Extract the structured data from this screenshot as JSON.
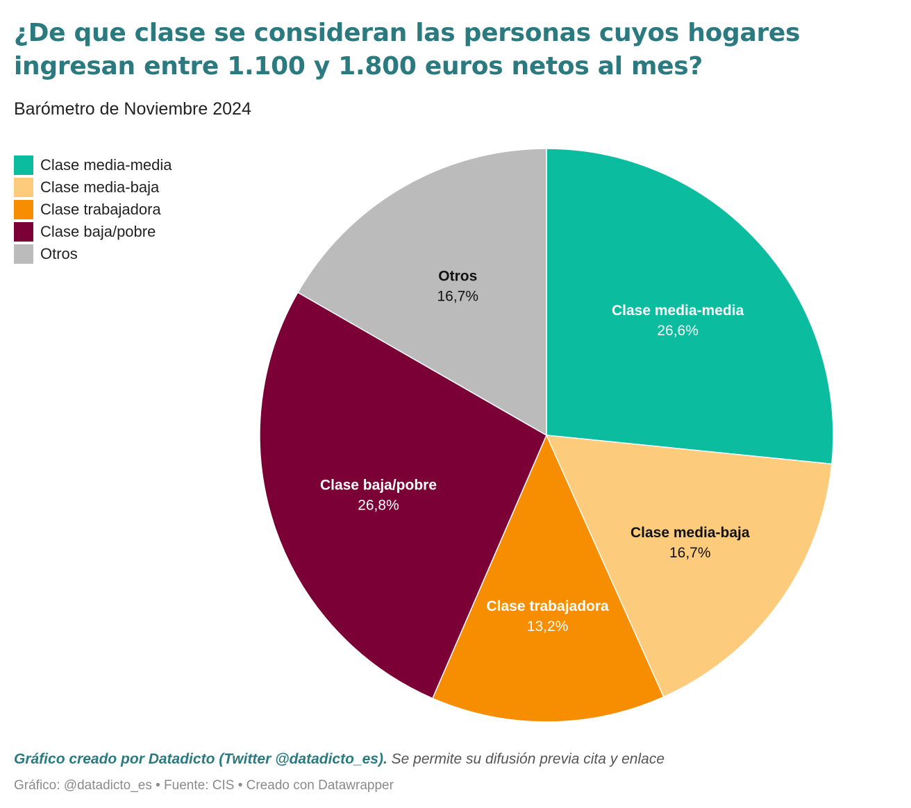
{
  "chart_data": {
    "type": "pie",
    "title": "¿De que clase se consideran las personas cuyos hogares ingresan entre 1.100 y 1.800 euros netos al mes?",
    "subtitle": "Barómetro de Noviembre 2024",
    "legend_position": "top-left",
    "slices": [
      {
        "label": "Clase media-media",
        "value": 26.6,
        "value_label": "26,6%",
        "color": "#0bbc9f",
        "text_color": "#ffffff"
      },
      {
        "label": "Clase media-baja",
        "value": 16.7,
        "value_label": "16,7%",
        "color": "#fccb7c",
        "text_color": "#111111"
      },
      {
        "label": "Clase trabajadora",
        "value": 13.2,
        "value_label": "13,2%",
        "color": "#f78d00",
        "text_color": "#ffffff"
      },
      {
        "label": "Clase baja/pobre",
        "value": 26.8,
        "value_label": "26,8%",
        "color": "#7b0036",
        "text_color": "#ffffff"
      },
      {
        "label": "Otros",
        "value": 16.7,
        "value_label": "16,7%",
        "color": "#bbbbbb",
        "text_color": "#111111"
      }
    ]
  },
  "footer": {
    "credit_strong": "Gráfico creado por Datadicto (Twitter @datadicto_es).",
    "credit_rest": " Se permite su difusión previa cita y enlace",
    "source": "Gráfico: @datadicto_es • Fuente: CIS • Creado con Datawrapper"
  }
}
